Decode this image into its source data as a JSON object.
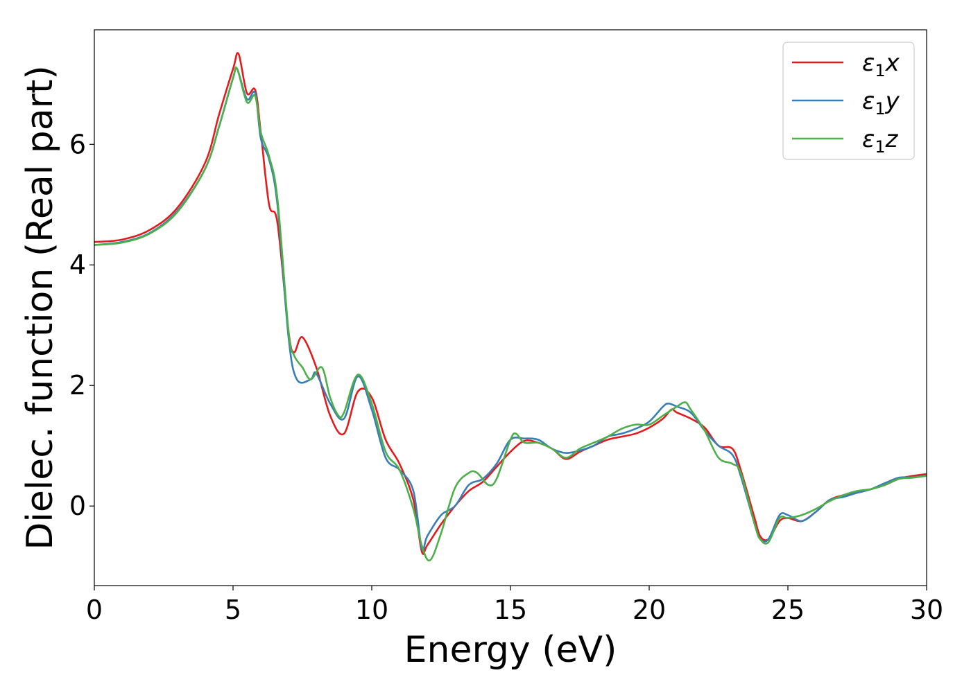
{
  "chart_data": {
    "type": "line",
    "title": "",
    "xlabel": "Energy (eV)",
    "ylabel": "Dielec. function (Real part)",
    "xlim": [
      0,
      30
    ],
    "ylim": [
      -1.32,
      7.9
    ],
    "xticks": [
      0,
      5,
      10,
      15,
      20,
      25,
      30
    ],
    "yticks": [
      0,
      2,
      4,
      6
    ],
    "grid": false,
    "legend_position": "top-right",
    "series": [
      {
        "name": "ε1x",
        "legend_base": "ε",
        "legend_sub": "1",
        "legend_suffix": "x",
        "color": "#e41a1c",
        "points": [
          [
            0,
            4.38
          ],
          [
            1,
            4.42
          ],
          [
            2,
            4.58
          ],
          [
            3,
            4.95
          ],
          [
            4,
            5.7
          ],
          [
            4.5,
            6.5
          ],
          [
            5,
            7.25
          ],
          [
            5.2,
            7.5
          ],
          [
            5.5,
            6.85
          ],
          [
            5.8,
            6.9
          ],
          [
            6,
            6.2
          ],
          [
            6.3,
            5.0
          ],
          [
            6.6,
            4.7
          ],
          [
            7,
            2.9
          ],
          [
            7.2,
            2.55
          ],
          [
            7.5,
            2.8
          ],
          [
            8,
            2.3
          ],
          [
            8.5,
            1.5
          ],
          [
            9,
            1.2
          ],
          [
            9.5,
            1.9
          ],
          [
            10,
            1.8
          ],
          [
            10.5,
            1.1
          ],
          [
            11,
            0.7
          ],
          [
            11.5,
            0.1
          ],
          [
            11.8,
            -0.75
          ],
          [
            12,
            -0.65
          ],
          [
            12.5,
            -0.3
          ],
          [
            13,
            0.0
          ],
          [
            13.5,
            0.25
          ],
          [
            14,
            0.4
          ],
          [
            14.5,
            0.65
          ],
          [
            15,
            0.9
          ],
          [
            15.5,
            1.08
          ],
          [
            16,
            1.05
          ],
          [
            16.5,
            0.95
          ],
          [
            17,
            0.78
          ],
          [
            17.5,
            0.9
          ],
          [
            18,
            1.0
          ],
          [
            18.5,
            1.1
          ],
          [
            19,
            1.15
          ],
          [
            19.5,
            1.2
          ],
          [
            20,
            1.3
          ],
          [
            20.5,
            1.45
          ],
          [
            20.8,
            1.6
          ],
          [
            21,
            1.55
          ],
          [
            21.5,
            1.45
          ],
          [
            22,
            1.3
          ],
          [
            22.5,
            1.0
          ],
          [
            23,
            0.95
          ],
          [
            23.3,
            0.6
          ],
          [
            23.8,
            -0.2
          ],
          [
            24,
            -0.5
          ],
          [
            24.3,
            -0.55
          ],
          [
            24.7,
            -0.25
          ],
          [
            25,
            -0.2
          ],
          [
            25.5,
            -0.25
          ],
          [
            26,
            -0.1
          ],
          [
            26.5,
            0.1
          ],
          [
            27,
            0.18
          ],
          [
            27.5,
            0.22
          ],
          [
            28,
            0.28
          ],
          [
            28.5,
            0.35
          ],
          [
            29,
            0.45
          ],
          [
            29.5,
            0.5
          ],
          [
            30,
            0.53
          ]
        ]
      },
      {
        "name": "ε1y",
        "legend_base": "ε",
        "legend_sub": "1",
        "legend_suffix": "y",
        "color": "#377eb8",
        "points": [
          [
            0,
            4.33
          ],
          [
            1,
            4.38
          ],
          [
            2,
            4.53
          ],
          [
            3,
            4.9
          ],
          [
            4,
            5.6
          ],
          [
            4.5,
            6.3
          ],
          [
            5,
            7.1
          ],
          [
            5.15,
            7.25
          ],
          [
            5.5,
            6.75
          ],
          [
            5.8,
            6.85
          ],
          [
            6,
            6.1
          ],
          [
            6.3,
            5.75
          ],
          [
            6.6,
            5.0
          ],
          [
            7,
            2.8
          ],
          [
            7.3,
            2.1
          ],
          [
            7.8,
            2.1
          ],
          [
            8,
            2.2
          ],
          [
            8.5,
            1.7
          ],
          [
            9,
            1.45
          ],
          [
            9.5,
            2.15
          ],
          [
            10,
            1.6
          ],
          [
            10.5,
            0.8
          ],
          [
            11,
            0.6
          ],
          [
            11.5,
            0.25
          ],
          [
            11.8,
            -0.7
          ],
          [
            12,
            -0.5
          ],
          [
            12.5,
            -0.15
          ],
          [
            13,
            0.0
          ],
          [
            13.5,
            0.35
          ],
          [
            14,
            0.45
          ],
          [
            14.5,
            0.7
          ],
          [
            15,
            1.1
          ],
          [
            15.5,
            1.12
          ],
          [
            16,
            1.1
          ],
          [
            16.5,
            0.95
          ],
          [
            17,
            0.88
          ],
          [
            17.5,
            0.92
          ],
          [
            18,
            1.0
          ],
          [
            18.5,
            1.15
          ],
          [
            19,
            1.2
          ],
          [
            19.5,
            1.28
          ],
          [
            20,
            1.4
          ],
          [
            20.5,
            1.65
          ],
          [
            20.7,
            1.7
          ],
          [
            21,
            1.65
          ],
          [
            21.5,
            1.55
          ],
          [
            22,
            1.25
          ],
          [
            22.5,
            1.0
          ],
          [
            23,
            0.85
          ],
          [
            23.3,
            0.5
          ],
          [
            23.8,
            -0.3
          ],
          [
            24,
            -0.55
          ],
          [
            24.3,
            -0.55
          ],
          [
            24.7,
            -0.15
          ],
          [
            25,
            -0.15
          ],
          [
            25.5,
            -0.25
          ],
          [
            26,
            -0.1
          ],
          [
            26.5,
            0.1
          ],
          [
            27,
            0.15
          ],
          [
            27.5,
            0.22
          ],
          [
            28,
            0.28
          ],
          [
            28.5,
            0.38
          ],
          [
            29,
            0.47
          ],
          [
            29.5,
            0.48
          ],
          [
            30,
            0.5
          ]
        ]
      },
      {
        "name": "ε1z",
        "legend_base": "ε",
        "legend_sub": "1",
        "legend_suffix": "z",
        "color": "#4daf4a",
        "points": [
          [
            0,
            4.33
          ],
          [
            1,
            4.37
          ],
          [
            2,
            4.52
          ],
          [
            3,
            4.88
          ],
          [
            4,
            5.6
          ],
          [
            4.5,
            6.3
          ],
          [
            5,
            7.1
          ],
          [
            5.15,
            7.25
          ],
          [
            5.5,
            6.7
          ],
          [
            5.8,
            6.8
          ],
          [
            6,
            6.2
          ],
          [
            6.3,
            5.8
          ],
          [
            6.6,
            5.1
          ],
          [
            7,
            2.9
          ],
          [
            7.2,
            2.5
          ],
          [
            7.5,
            2.3
          ],
          [
            7.8,
            2.1
          ],
          [
            8.2,
            2.3
          ],
          [
            8.5,
            1.8
          ],
          [
            8.8,
            1.5
          ],
          [
            9,
            1.55
          ],
          [
            9.5,
            2.18
          ],
          [
            10,
            1.7
          ],
          [
            10.5,
            0.9
          ],
          [
            11,
            0.6
          ],
          [
            11.5,
            -0.05
          ],
          [
            11.8,
            -0.65
          ],
          [
            12.1,
            -0.9
          ],
          [
            12.5,
            -0.45
          ],
          [
            13,
            0.3
          ],
          [
            13.5,
            0.55
          ],
          [
            13.8,
            0.55
          ],
          [
            14.2,
            0.35
          ],
          [
            14.5,
            0.45
          ],
          [
            15,
            1.1
          ],
          [
            15.2,
            1.2
          ],
          [
            15.5,
            1.05
          ],
          [
            16,
            1.05
          ],
          [
            16.5,
            0.95
          ],
          [
            17,
            0.8
          ],
          [
            17.5,
            0.95
          ],
          [
            18,
            1.05
          ],
          [
            18.5,
            1.15
          ],
          [
            19,
            1.28
          ],
          [
            19.5,
            1.35
          ],
          [
            20,
            1.35
          ],
          [
            20.5,
            1.5
          ],
          [
            21,
            1.65
          ],
          [
            21.3,
            1.72
          ],
          [
            21.5,
            1.6
          ],
          [
            22,
            1.25
          ],
          [
            22.5,
            0.8
          ],
          [
            23,
            0.7
          ],
          [
            23.3,
            0.55
          ],
          [
            23.8,
            -0.3
          ],
          [
            24,
            -0.55
          ],
          [
            24.3,
            -0.6
          ],
          [
            24.7,
            -0.2
          ],
          [
            25,
            -0.2
          ],
          [
            25.5,
            -0.15
          ],
          [
            26,
            -0.05
          ],
          [
            26.5,
            0.08
          ],
          [
            27,
            0.18
          ],
          [
            27.5,
            0.25
          ],
          [
            28,
            0.28
          ],
          [
            28.5,
            0.35
          ],
          [
            29,
            0.45
          ],
          [
            29.5,
            0.47
          ],
          [
            30,
            0.5
          ]
        ]
      }
    ]
  }
}
